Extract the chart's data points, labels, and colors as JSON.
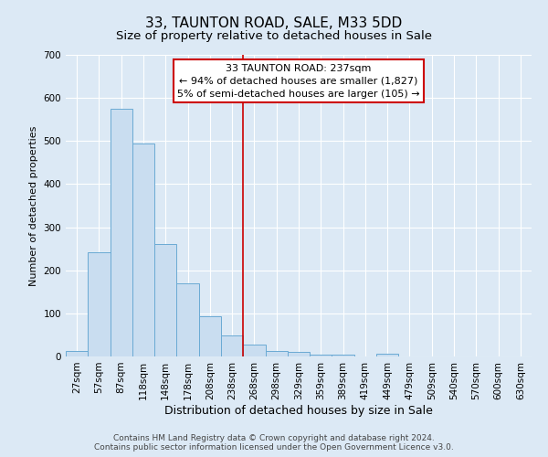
{
  "title": "33, TAUNTON ROAD, SALE, M33 5DD",
  "subtitle": "Size of property relative to detached houses in Sale",
  "xlabel": "Distribution of detached houses by size in Sale",
  "ylabel": "Number of detached properties",
  "bar_labels": [
    "27sqm",
    "57sqm",
    "87sqm",
    "118sqm",
    "148sqm",
    "178sqm",
    "208sqm",
    "238sqm",
    "268sqm",
    "298sqm",
    "329sqm",
    "359sqm",
    "389sqm",
    "419sqm",
    "449sqm",
    "479sqm",
    "509sqm",
    "540sqm",
    "570sqm",
    "600sqm",
    "630sqm"
  ],
  "bar_values": [
    12,
    242,
    575,
    494,
    260,
    170,
    93,
    48,
    27,
    13,
    10,
    5,
    5,
    0,
    7,
    0,
    0,
    0,
    0,
    0,
    0
  ],
  "bar_color": "#c9ddf0",
  "bar_edgecolor": "#6aaad4",
  "background_color": "#dce9f5",
  "grid_color": "#ffffff",
  "vline_index": 7,
  "vline_color": "#cc0000",
  "annotation_text": "33 TAUNTON ROAD: 237sqm\n← 94% of detached houses are smaller (1,827)\n5% of semi-detached houses are larger (105) →",
  "annotation_box_edgecolor": "#cc0000",
  "annotation_box_facecolor": "#ffffff",
  "ylim": [
    0,
    700
  ],
  "yticks": [
    0,
    100,
    200,
    300,
    400,
    500,
    600,
    700
  ],
  "title_fontsize": 11,
  "subtitle_fontsize": 9.5,
  "xlabel_fontsize": 9,
  "ylabel_fontsize": 8,
  "tick_fontsize": 7.5,
  "annot_fontsize": 8,
  "footer_text": "Contains HM Land Registry data © Crown copyright and database right 2024.\nContains public sector information licensed under the Open Government Licence v3.0.",
  "footer_fontsize": 6.5
}
